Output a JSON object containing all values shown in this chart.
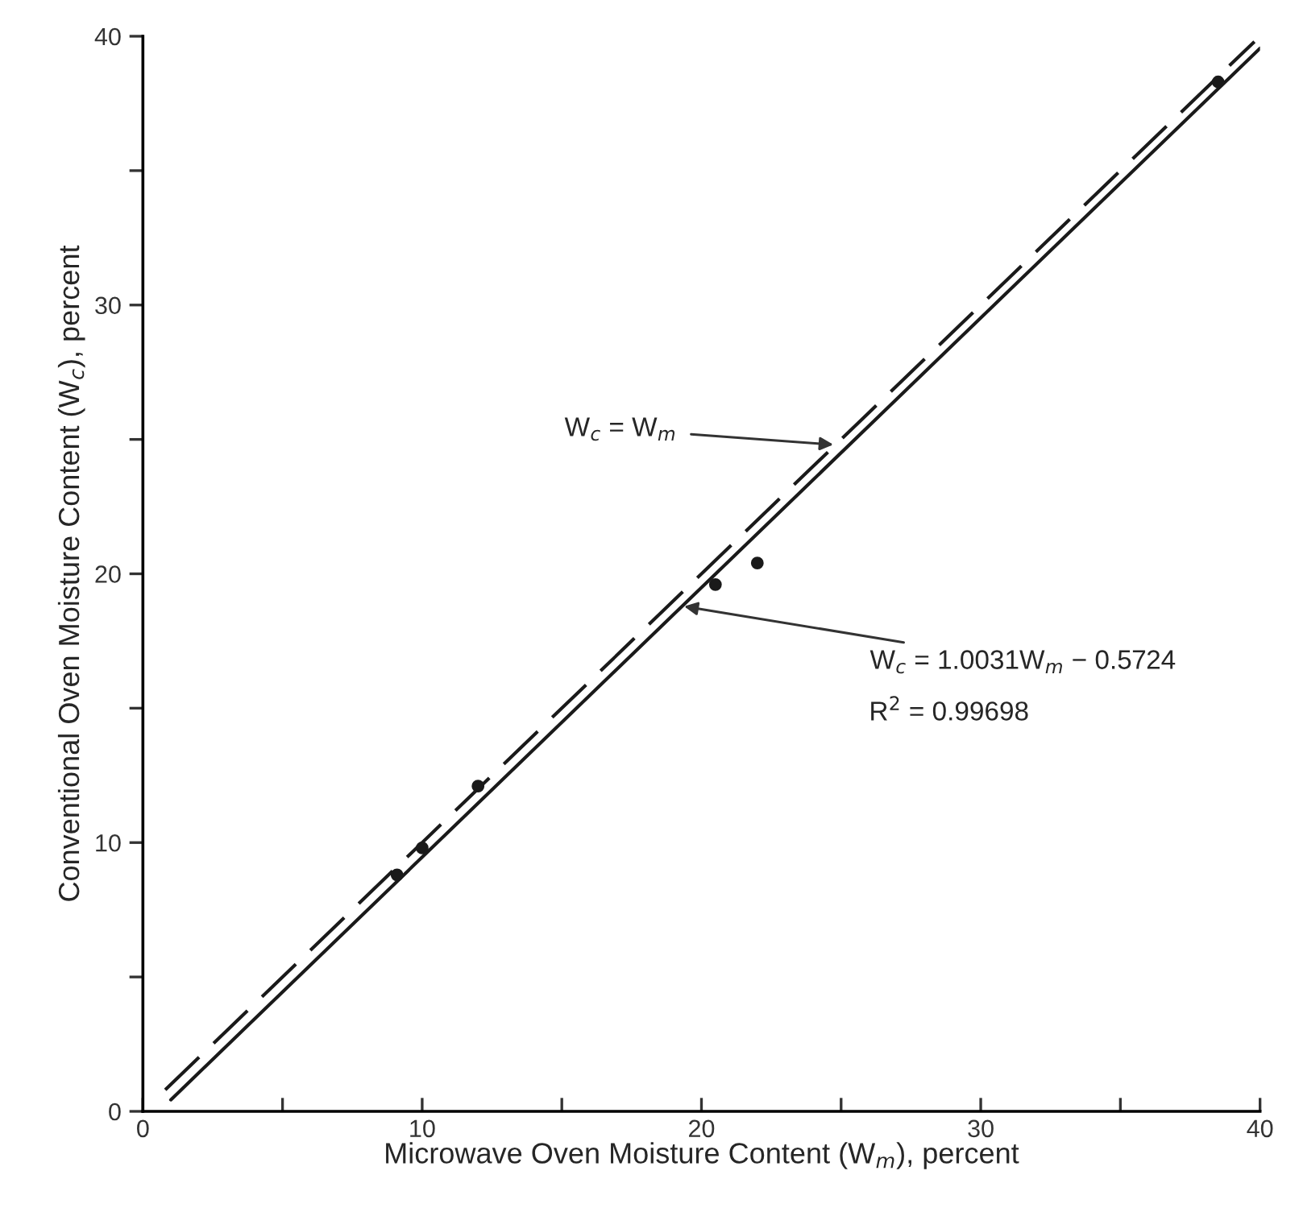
{
  "chart_data": {
    "type": "scatter",
    "xlabel": "Microwave Oven Moisture Content (W$_{m}$), percent",
    "ylabel": "Conventional Oven Moisture Content (W$_{c}$), percent",
    "x": [
      9.1,
      10.0,
      12.0,
      20.5,
      22.0,
      38.5
    ],
    "values": [
      8.8,
      9.8,
      12.1,
      19.6,
      20.4,
      38.3
    ],
    "color": "#1a1a1a",
    "marker": "circle",
    "series": [
      {
        "type": "line",
        "x": [
          1.0,
          40.0
        ],
        "values": [
          0.43,
          39.55
        ],
        "color": "#1a1a1a",
        "line_style": "solid",
        "marker": "none"
      },
      {
        "type": "line",
        "x": [
          0.8,
          39.8
        ],
        "values": [
          0.8,
          39.8
        ],
        "color": "#1a1a1a",
        "line_style": "dashed",
        "marker": "none"
      }
    ],
    "annotations": [
      {
        "text": "W$_{c}$ = W$_{m}$",
        "x": 24.8,
        "y": 24.8
      },
      {
        "text": "W$_{c}$ = 1.0031W$_{m}$ − 0.5724",
        "x": 19.3,
        "y": 18.8
      },
      "R$^{2}$ = 0.99698"
    ],
    "xlim": [
      0,
      40
    ],
    "ylim": [
      0,
      40
    ],
    "xticks": [
      0,
      {
        "value": 5,
        "label": null
      },
      10,
      {
        "value": 15,
        "label": null
      },
      20,
      {
        "value": 25,
        "label": null
      },
      30,
      {
        "value": 35,
        "label": null
      },
      40
    ],
    "yticks": [
      0,
      {
        "value": 5,
        "label": null
      },
      10,
      {
        "value": 15,
        "label": null
      },
      20,
      {
        "value": 25,
        "label": null
      },
      30,
      {
        "value": 35,
        "label": null
      },
      40
    ],
    "grid": false,
    "legend": false
  }
}
